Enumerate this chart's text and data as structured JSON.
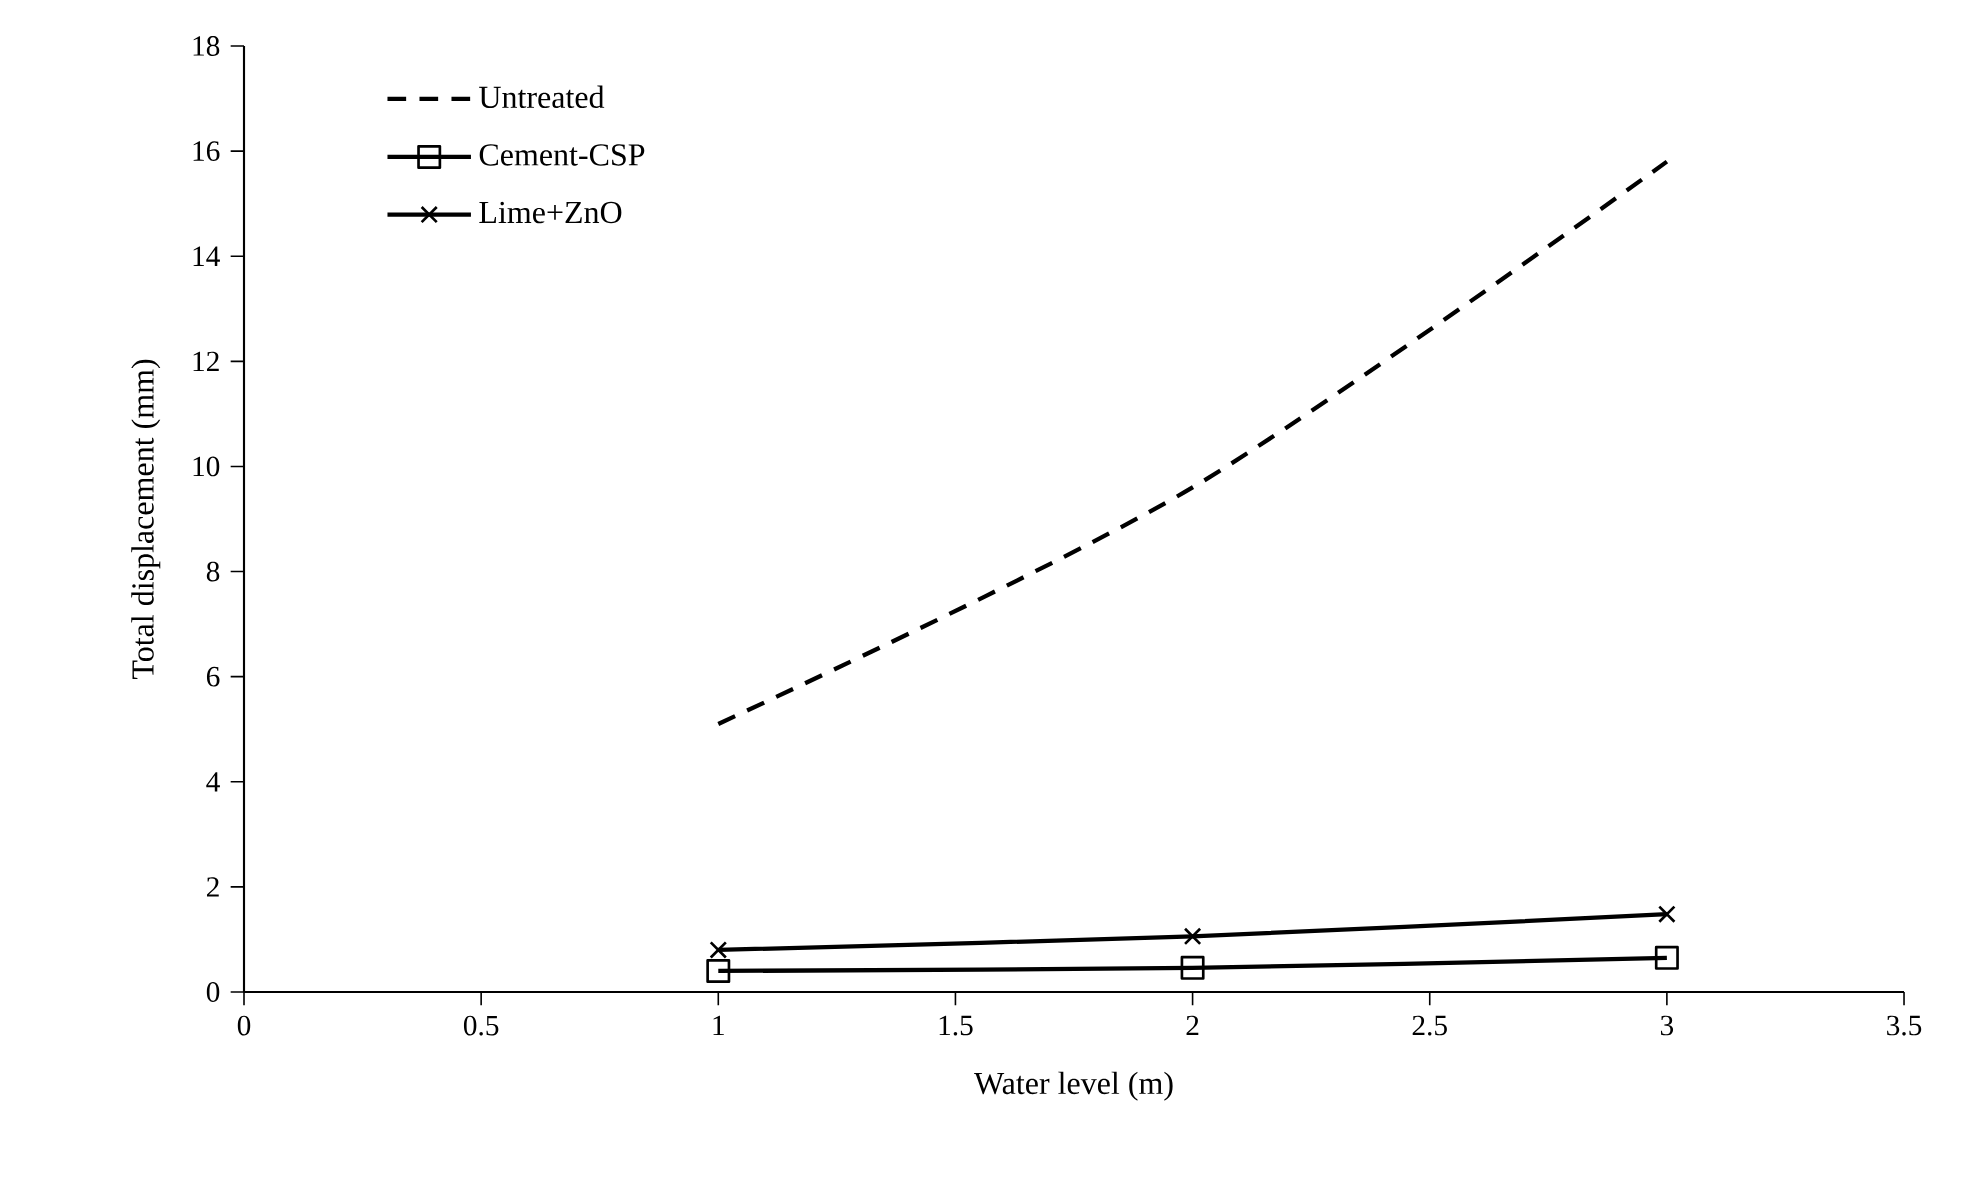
{
  "chart_data": {
    "type": "line",
    "xlabel": "Water level (m)",
    "ylabel": "Total displacement (mm)",
    "xlim": [
      0,
      3.5
    ],
    "xticks": [
      0,
      0.5,
      1,
      1.5,
      2,
      2.5,
      3,
      3.5
    ],
    "ylim": [
      0,
      18
    ],
    "yticks": [
      0,
      2,
      4,
      6,
      8,
      10,
      12,
      14,
      16,
      18
    ],
    "x": [
      1,
      2,
      3
    ],
    "grid": false,
    "legend": "top left",
    "series": [
      {
        "name": "Untreated",
        "color": "#000000",
        "values": [
          5.1,
          9.6,
          15.8
        ],
        "line_style": "dashed",
        "marker": "none"
      },
      {
        "name": "Cement-CSP",
        "color": "#000000",
        "values": [
          0.4,
          0.46,
          0.65
        ],
        "line_style": "solid",
        "marker": "square"
      },
      {
        "name": "Lime+ZnO",
        "color": "#000000",
        "values": [
          0.8,
          1.06,
          1.48
        ],
        "line_style": "solid",
        "marker": "cross"
      }
    ]
  }
}
